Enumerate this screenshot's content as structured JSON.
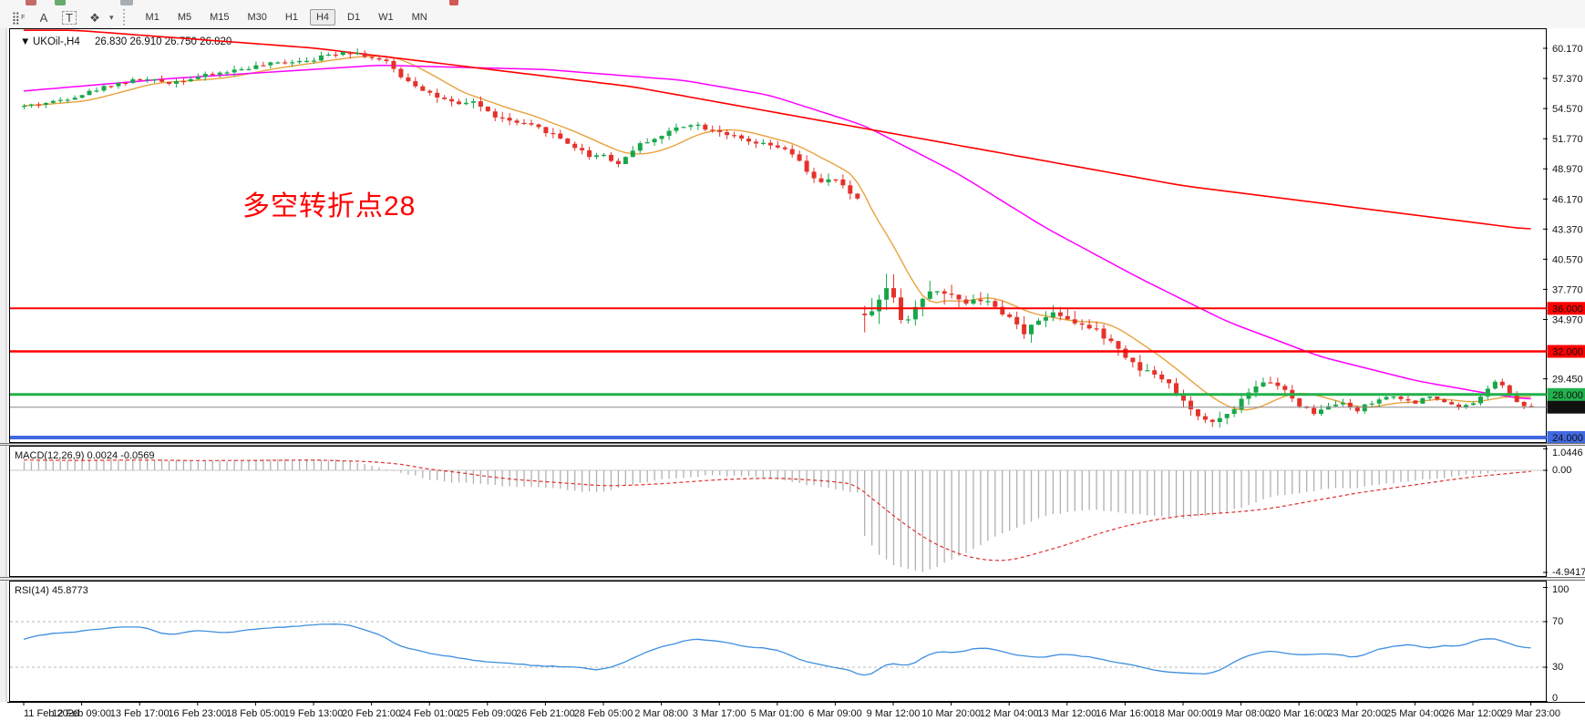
{
  "toolbar": {
    "icons": [
      {
        "name": "grid-pattern-icon",
        "glyph": "⣿",
        "sub": "F"
      },
      {
        "name": "label-tool-icon",
        "glyph": "A",
        "sub": ""
      },
      {
        "name": "textbox-tool-icon",
        "glyph": "T",
        "sub": ""
      },
      {
        "name": "shapes-tool-icon",
        "glyph": "❖",
        "sub": ""
      }
    ],
    "shapes_caret": "▾",
    "timeframes": [
      "M1",
      "M5",
      "M15",
      "M30",
      "H1",
      "H4",
      "D1",
      "W1",
      "MN"
    ],
    "active_timeframe": "H4",
    "top_fragments": [
      {
        "x": 28,
        "w": 12,
        "color": "#b8524e"
      },
      {
        "x": 60,
        "w": 12,
        "color": "#4f9d54"
      },
      {
        "x": 132,
        "w": 14,
        "color": "#9aa0a6"
      },
      {
        "x": 493,
        "w": 10,
        "color": "#cc3b36"
      }
    ]
  },
  "chart": {
    "dropdown_glyph": "▼",
    "title_symbol": "UKOil-,H4",
    "title_ohlc": "26.830 26.910 26.750 26.820",
    "annotation": {
      "text": "多空转折点28",
      "color": "#FF0000"
    },
    "macd_display": "MACD(12,26,9) 0.0024 -0.0569",
    "rsi_display": "RSI(14) 45.8773"
  },
  "chart_data": {
    "type": "candlestick",
    "symbol": "UKOil-",
    "timeframe": "H4",
    "open": "26.830",
    "high": "26.910",
    "low": "26.750",
    "close": "26.820",
    "bar_count": 209,
    "bars_per_label": 8,
    "x_labels": [
      "11 Feb 2020",
      "12 Feb 09:00",
      "13 Feb 17:00",
      "16 Feb 23:00",
      "18 Feb 05:00",
      "19 Feb 13:00",
      "20 Feb 21:00",
      "24 Feb 01:00",
      "25 Feb 09:00",
      "26 Feb 21:00",
      "28 Feb 05:00",
      "2 Mar 08:00",
      "3 Mar 17:00",
      "5 Mar 01:00",
      "6 Mar 09:00",
      "9 Mar 12:00",
      "10 Mar 20:00",
      "12 Mar 04:00",
      "13 Mar 12:00",
      "16 Mar 16:00",
      "18 Mar 00:00",
      "19 Mar 08:00",
      "20 Mar 16:00",
      "23 Mar 20:00",
      "25 Mar 04:00",
      "26 Mar 12:00",
      "29 Mar 23:00"
    ],
    "y_axis_ticks": [
      [
        "60.170",
        60.17
      ],
      [
        "57.370",
        57.37
      ],
      [
        "54.570",
        54.57
      ],
      [
        "51.770",
        51.77
      ],
      [
        "48.970",
        48.97
      ],
      [
        "46.170",
        46.17
      ],
      [
        "43.370",
        43.37
      ],
      [
        "40.570",
        40.57
      ],
      [
        "37.770",
        37.77
      ],
      [
        "34.970",
        34.97
      ],
      [
        "29.450",
        29.45
      ]
    ],
    "levels": [
      {
        "label": "36.000",
        "price": 36.0,
        "color": "#FF0000",
        "width": 2,
        "badge": "#FF0000"
      },
      {
        "label": "32.000",
        "price": 32.0,
        "color": "#FF0000",
        "width": 2.5,
        "badge": "#FF0000"
      },
      {
        "label": "28.000",
        "price": 28.0,
        "color": "#22B14C",
        "width": 3,
        "badge": "#22B14C"
      },
      {
        "label": "26.820",
        "price": 26.82,
        "color": "#8a8a8a",
        "width": 1,
        "badge": "#111111"
      },
      {
        "label": "24.000",
        "price": 24.0,
        "color": "#4169E1",
        "width": 4,
        "badge": "#4169E1"
      }
    ],
    "price_anchors": [
      [
        0,
        54.8
      ],
      [
        4,
        55.2
      ],
      [
        8,
        55.9
      ],
      [
        12,
        56.8
      ],
      [
        16,
        57.3
      ],
      [
        20,
        57.0
      ],
      [
        24,
        57.5
      ],
      [
        28,
        58.0
      ],
      [
        32,
        58.5
      ],
      [
        36,
        58.9
      ],
      [
        40,
        59.2
      ],
      [
        44,
        59.9
      ],
      [
        46,
        59.7
      ],
      [
        48,
        59.3
      ],
      [
        50,
        58.8
      ],
      [
        52,
        57.6
      ],
      [
        54,
        56.8
      ],
      [
        56,
        56.0
      ],
      [
        58,
        55.3
      ],
      [
        60,
        54.8
      ],
      [
        62,
        55.3
      ],
      [
        64,
        54.2
      ],
      [
        66,
        53.6
      ],
      [
        68,
        53.2
      ],
      [
        70,
        52.9
      ],
      [
        72,
        52.5
      ],
      [
        74,
        51.8
      ],
      [
        76,
        51.0
      ],
      [
        78,
        50.2
      ],
      [
        80,
        50.3
      ],
      [
        82,
        49.4
      ],
      [
        84,
        50.8
      ],
      [
        86,
        51.6
      ],
      [
        88,
        52.0
      ],
      [
        90,
        52.8
      ],
      [
        92,
        53.2
      ],
      [
        94,
        52.8
      ],
      [
        96,
        52.5
      ],
      [
        98,
        51.9
      ],
      [
        100,
        51.4
      ],
      [
        102,
        51.2
      ],
      [
        104,
        51.0
      ],
      [
        106,
        50.3
      ],
      [
        108,
        48.8
      ],
      [
        110,
        47.6
      ],
      [
        112,
        48.0
      ],
      [
        113,
        47.2
      ],
      [
        115,
        46.2
      ],
      [
        116,
        36.0
      ],
      [
        117,
        35.2
      ],
      [
        118,
        37.5
      ],
      [
        119,
        38.2
      ],
      [
        120,
        36.5
      ],
      [
        121,
        35.4
      ],
      [
        122,
        35.0
      ],
      [
        124,
        36.8
      ],
      [
        126,
        38.0
      ],
      [
        128,
        37.2
      ],
      [
        130,
        36.2
      ],
      [
        132,
        37.0
      ],
      [
        134,
        35.8
      ],
      [
        136,
        35.0
      ],
      [
        138,
        33.8
      ],
      [
        140,
        34.8
      ],
      [
        142,
        35.8
      ],
      [
        144,
        35.2
      ],
      [
        146,
        34.5
      ],
      [
        148,
        33.8
      ],
      [
        150,
        33.0
      ],
      [
        152,
        31.5
      ],
      [
        154,
        30.5
      ],
      [
        156,
        29.8
      ],
      [
        158,
        29.0
      ],
      [
        160,
        27.5
      ],
      [
        162,
        26.0
      ],
      [
        164,
        25.3
      ],
      [
        166,
        26.2
      ],
      [
        168,
        27.5
      ],
      [
        170,
        28.5
      ],
      [
        172,
        29.3
      ],
      [
        174,
        28.3
      ],
      [
        176,
        27.0
      ],
      [
        178,
        26.3
      ],
      [
        180,
        26.8
      ],
      [
        182,
        27.2
      ],
      [
        184,
        26.5
      ],
      [
        186,
        27.3
      ],
      [
        188,
        27.8
      ],
      [
        190,
        27.5
      ],
      [
        192,
        27.3
      ],
      [
        194,
        27.8
      ],
      [
        196,
        27.2
      ],
      [
        198,
        26.8
      ],
      [
        200,
        27.2
      ],
      [
        202,
        28.6
      ],
      [
        203,
        29.2
      ],
      [
        204,
        28.8
      ],
      [
        205,
        28.0
      ],
      [
        206,
        27.3
      ],
      [
        207,
        27.0
      ],
      [
        208,
        26.82
      ]
    ],
    "bar_range_anchors": [
      [
        0,
        0.45
      ],
      [
        44,
        0.5
      ],
      [
        52,
        0.7
      ],
      [
        80,
        0.6
      ],
      [
        104,
        0.55
      ],
      [
        112,
        0.8
      ],
      [
        115,
        1.0
      ],
      [
        116,
        2.4
      ],
      [
        120,
        1.8
      ],
      [
        124,
        1.4
      ],
      [
        132,
        1.1
      ],
      [
        140,
        1.0
      ],
      [
        152,
        0.95
      ],
      [
        160,
        0.85
      ],
      [
        168,
        0.75
      ],
      [
        176,
        0.6
      ],
      [
        184,
        0.5
      ],
      [
        196,
        0.4
      ],
      [
        208,
        0.35
      ]
    ],
    "ma_fast": {
      "period": 10,
      "color": "#E8A33D"
    },
    "ma_mid": {
      "color": "#FF00FF",
      "anchors": [
        [
          0,
          56.2
        ],
        [
          21,
          57.4
        ],
        [
          49,
          58.6
        ],
        [
          72,
          58.2
        ],
        [
          91,
          57.2
        ],
        [
          103,
          55.8
        ],
        [
          116,
          53.0
        ],
        [
          129,
          48.5
        ],
        [
          141,
          43.5
        ],
        [
          154,
          38.8
        ],
        [
          166,
          34.8
        ],
        [
          179,
          31.5
        ],
        [
          192,
          29.3
        ],
        [
          202,
          28.1
        ],
        [
          207,
          27.6
        ]
      ]
    },
    "ma_slow": {
      "color": "#FF0000",
      "anchors": [
        [
          7,
          61.85
        ],
        [
          40,
          60.2
        ],
        [
          84,
          56.6
        ],
        [
          122,
          52.0
        ],
        [
          160,
          47.4
        ],
        [
          207,
          43.4
        ]
      ]
    },
    "macd": {
      "params": "12,26,9",
      "value_main": "0.0024",
      "value_signal": "-0.0569",
      "y_ticks": [
        [
          "1.0446",
          1.0446
        ],
        [
          "0.00",
          0
        ],
        [
          "-4.9417",
          -4.9417
        ]
      ],
      "hist_color": "#b0b0b0",
      "signal_color": "#E03030",
      "hist_anchors": [
        [
          0,
          0.45
        ],
        [
          8,
          0.5
        ],
        [
          16,
          0.55
        ],
        [
          24,
          0.45
        ],
        [
          32,
          0.5
        ],
        [
          40,
          0.55
        ],
        [
          44,
          0.5
        ],
        [
          48,
          0.2
        ],
        [
          52,
          -0.1
        ],
        [
          56,
          -0.45
        ],
        [
          60,
          -0.6
        ],
        [
          64,
          -0.7
        ],
        [
          68,
          -0.8
        ],
        [
          72,
          -0.85
        ],
        [
          76,
          -1.0
        ],
        [
          80,
          -1.05
        ],
        [
          84,
          -0.7
        ],
        [
          88,
          -0.45
        ],
        [
          92,
          -0.3
        ],
        [
          96,
          -0.25
        ],
        [
          100,
          -0.3
        ],
        [
          104,
          -0.45
        ],
        [
          108,
          -0.7
        ],
        [
          112,
          -0.9
        ],
        [
          115,
          -1.1
        ],
        [
          116,
          -3.2
        ],
        [
          118,
          -4.1
        ],
        [
          120,
          -4.6
        ],
        [
          122,
          -4.8
        ],
        [
          124,
          -4.9
        ],
        [
          126,
          -4.7
        ],
        [
          128,
          -4.3
        ],
        [
          130,
          -4.0
        ],
        [
          132,
          -3.6
        ],
        [
          134,
          -3.2
        ],
        [
          136,
          -2.9
        ],
        [
          138,
          -2.6
        ],
        [
          140,
          -2.3
        ],
        [
          144,
          -2.0
        ],
        [
          148,
          -1.9
        ],
        [
          152,
          -2.1
        ],
        [
          156,
          -2.2
        ],
        [
          160,
          -2.3
        ],
        [
          164,
          -2.2
        ],
        [
          168,
          -1.8
        ],
        [
          172,
          -1.3
        ],
        [
          176,
          -1.1
        ],
        [
          180,
          -0.9
        ],
        [
          184,
          -0.85
        ],
        [
          188,
          -0.65
        ],
        [
          192,
          -0.5
        ],
        [
          196,
          -0.35
        ],
        [
          200,
          -0.2
        ],
        [
          204,
          -0.05
        ],
        [
          208,
          0.0024
        ]
      ],
      "signal_anchors": [
        [
          0,
          0.5
        ],
        [
          8,
          0.48
        ],
        [
          16,
          0.5
        ],
        [
          24,
          0.47
        ],
        [
          32,
          0.48
        ],
        [
          40,
          0.5
        ],
        [
          48,
          0.42
        ],
        [
          52,
          0.3
        ],
        [
          56,
          0.05
        ],
        [
          60,
          -0.1
        ],
        [
          64,
          -0.3
        ],
        [
          68,
          -0.45
        ],
        [
          72,
          -0.55
        ],
        [
          76,
          -0.65
        ],
        [
          80,
          -0.75
        ],
        [
          84,
          -0.72
        ],
        [
          88,
          -0.65
        ],
        [
          92,
          -0.55
        ],
        [
          96,
          -0.45
        ],
        [
          100,
          -0.4
        ],
        [
          104,
          -0.38
        ],
        [
          108,
          -0.45
        ],
        [
          112,
          -0.55
        ],
        [
          115,
          -0.7
        ],
        [
          116,
          -1.1
        ],
        [
          118,
          -1.6
        ],
        [
          120,
          -2.2
        ],
        [
          122,
          -2.7
        ],
        [
          124,
          -3.2
        ],
        [
          126,
          -3.6
        ],
        [
          128,
          -3.9
        ],
        [
          130,
          -4.15
        ],
        [
          132,
          -4.3
        ],
        [
          134,
          -4.38
        ],
        [
          136,
          -4.35
        ],
        [
          138,
          -4.2
        ],
        [
          140,
          -4.0
        ],
        [
          144,
          -3.6
        ],
        [
          148,
          -3.1
        ],
        [
          152,
          -2.7
        ],
        [
          156,
          -2.4
        ],
        [
          160,
          -2.2
        ],
        [
          164,
          -2.1
        ],
        [
          168,
          -2.0
        ],
        [
          172,
          -1.85
        ],
        [
          176,
          -1.6
        ],
        [
          180,
          -1.35
        ],
        [
          184,
          -1.1
        ],
        [
          188,
          -0.9
        ],
        [
          192,
          -0.7
        ],
        [
          196,
          -0.5
        ],
        [
          200,
          -0.32
        ],
        [
          204,
          -0.18
        ],
        [
          208,
          -0.0569
        ]
      ]
    },
    "rsi": {
      "period": "14",
      "value": "45.8773",
      "color": "#3E8EDE",
      "y_ticks": [
        [
          "100",
          100
        ],
        [
          "70",
          70
        ],
        [
          "30",
          30
        ],
        [
          "0",
          0
        ]
      ],
      "level_lines": [
        70,
        30
      ],
      "anchors": [
        [
          0,
          55
        ],
        [
          4,
          60
        ],
        [
          8,
          62
        ],
        [
          12,
          65
        ],
        [
          16,
          66
        ],
        [
          20,
          58
        ],
        [
          24,
          62
        ],
        [
          28,
          60
        ],
        [
          32,
          64
        ],
        [
          36,
          65
        ],
        [
          40,
          67
        ],
        [
          44,
          68
        ],
        [
          48,
          62
        ],
        [
          52,
          48
        ],
        [
          56,
          42
        ],
        [
          60,
          38
        ],
        [
          64,
          35
        ],
        [
          68,
          33
        ],
        [
          72,
          31
        ],
        [
          76,
          30
        ],
        [
          80,
          27
        ],
        [
          84,
          38
        ],
        [
          88,
          48
        ],
        [
          92,
          55
        ],
        [
          96,
          52
        ],
        [
          100,
          48
        ],
        [
          104,
          45
        ],
        [
          108,
          35
        ],
        [
          112,
          30
        ],
        [
          115,
          26
        ],
        [
          116,
          20
        ],
        [
          118,
          28
        ],
        [
          120,
          35
        ],
        [
          122,
          30
        ],
        [
          124,
          38
        ],
        [
          126,
          44
        ],
        [
          128,
          42
        ],
        [
          132,
          47
        ],
        [
          136,
          42
        ],
        [
          140,
          38
        ],
        [
          144,
          42
        ],
        [
          148,
          38
        ],
        [
          152,
          32
        ],
        [
          156,
          28
        ],
        [
          160,
          25
        ],
        [
          164,
          24
        ],
        [
          168,
          38
        ],
        [
          172,
          46
        ],
        [
          176,
          40
        ],
        [
          180,
          42
        ],
        [
          184,
          38
        ],
        [
          186,
          44
        ],
        [
          188,
          48
        ],
        [
          192,
          50
        ],
        [
          194,
          46
        ],
        [
          196,
          50
        ],
        [
          198,
          47
        ],
        [
          200,
          52
        ],
        [
          202,
          56
        ],
        [
          204,
          53
        ],
        [
          206,
          49
        ],
        [
          208,
          45.8773
        ]
      ]
    },
    "colors": {
      "bull": "#17A74A",
      "bear": "#E4322B",
      "axis_text": "#111111",
      "border": "#000000"
    }
  }
}
